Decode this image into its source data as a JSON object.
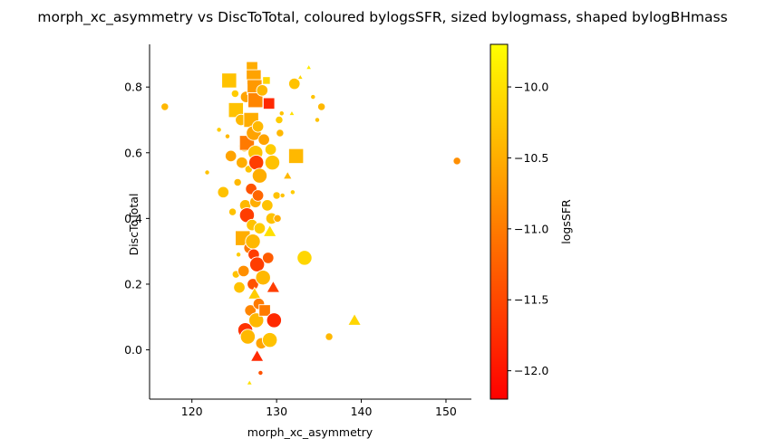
{
  "chart_data": {
    "type": "scatter",
    "title": "morph_xc_asymmetry vs DiscToTotal, coloured bylogsSFR, sized bylogmass, shaped bylogBHmass",
    "xlabel": "morph_xc_asymmetry",
    "ylabel": "DiscToTotal",
    "xlim": [
      115,
      153
    ],
    "ylim": [
      -0.15,
      0.93
    ],
    "xticks": [
      120,
      130,
      140,
      150
    ],
    "yticks": [
      0.0,
      0.2,
      0.4,
      0.6,
      0.8
    ],
    "grid": false,
    "colorbar": {
      "label": "logsSFR",
      "range": [
        -12.2,
        -9.7
      ],
      "ticks": [
        -10.0,
        -10.5,
        -11.0,
        -11.5,
        -12.0
      ],
      "colormap": [
        "#ff0000",
        "#ff8000",
        "#ffff00"
      ]
    },
    "points": [
      {
        "x": 116.8,
        "y": 0.74,
        "c": -10.4,
        "s": 1,
        "m": "o"
      },
      {
        "x": 121.8,
        "y": 0.54,
        "c": -10.3,
        "s": 0,
        "m": "o"
      },
      {
        "x": 123.2,
        "y": 0.67,
        "c": -10.2,
        "s": 0,
        "m": "o"
      },
      {
        "x": 123.7,
        "y": 0.48,
        "c": -10.3,
        "s": 2,
        "m": "o"
      },
      {
        "x": 124.2,
        "y": 0.65,
        "c": -10.4,
        "s": 0,
        "m": "o"
      },
      {
        "x": 124.4,
        "y": 0.82,
        "c": -10.3,
        "s": 3,
        "m": "s"
      },
      {
        "x": 124.6,
        "y": 0.59,
        "c": -10.6,
        "s": 2,
        "m": "o"
      },
      {
        "x": 124.8,
        "y": 0.42,
        "c": -10.3,
        "s": 1,
        "m": "o"
      },
      {
        "x": 125.1,
        "y": 0.78,
        "c": -10.2,
        "s": 1,
        "m": "o"
      },
      {
        "x": 125.2,
        "y": 0.73,
        "c": -10.3,
        "s": 3,
        "m": "s"
      },
      {
        "x": 125.2,
        "y": 0.23,
        "c": -10.3,
        "s": 1,
        "m": "o"
      },
      {
        "x": 125.4,
        "y": 0.51,
        "c": -10.4,
        "s": 1,
        "m": "o"
      },
      {
        "x": 125.5,
        "y": 0.29,
        "c": -10.2,
        "s": 0,
        "m": "o"
      },
      {
        "x": 125.6,
        "y": 0.19,
        "c": -10.3,
        "s": 2,
        "m": "o"
      },
      {
        "x": 125.8,
        "y": 0.7,
        "c": -10.4,
        "s": 2,
        "m": "o"
      },
      {
        "x": 125.9,
        "y": 0.57,
        "c": -10.5,
        "s": 2,
        "m": "o"
      },
      {
        "x": 126.0,
        "y": 0.34,
        "c": -10.5,
        "s": 3,
        "m": "s"
      },
      {
        "x": 126.1,
        "y": 0.24,
        "c": -10.8,
        "s": 2,
        "m": "o"
      },
      {
        "x": 126.2,
        "y": 0.62,
        "c": -10.4,
        "s": 2,
        "m": "o"
      },
      {
        "x": 126.3,
        "y": 0.44,
        "c": -10.4,
        "s": 2,
        "m": "o"
      },
      {
        "x": 126.3,
        "y": 0.06,
        "c": -11.7,
        "s": 3,
        "m": "o"
      },
      {
        "x": 126.4,
        "y": 0.77,
        "c": -10.6,
        "s": 2,
        "m": "o"
      },
      {
        "x": 126.5,
        "y": 0.63,
        "c": -11.0,
        "s": 3,
        "m": "s"
      },
      {
        "x": 126.5,
        "y": 0.41,
        "c": -11.6,
        "s": 3,
        "m": "o"
      },
      {
        "x": 126.6,
        "y": 0.04,
        "c": -10.4,
        "s": 3,
        "m": "o"
      },
      {
        "x": 126.7,
        "y": 0.55,
        "c": -10.3,
        "s": 1,
        "m": "o"
      },
      {
        "x": 126.8,
        "y": -0.1,
        "c": -10.0,
        "s": 0,
        "m": "^"
      },
      {
        "x": 126.8,
        "y": 0.31,
        "c": -11.0,
        "s": 2,
        "m": "o"
      },
      {
        "x": 126.9,
        "y": 0.12,
        "c": -10.9,
        "s": 2,
        "m": "o"
      },
      {
        "x": 127.0,
        "y": 0.7,
        "c": -10.5,
        "s": 3,
        "m": "s"
      },
      {
        "x": 127.0,
        "y": 0.49,
        "c": -11.4,
        "s": 2,
        "m": "o"
      },
      {
        "x": 127.1,
        "y": 0.86,
        "c": -10.5,
        "s": 2,
        "m": "s"
      },
      {
        "x": 127.1,
        "y": 0.38,
        "c": -10.3,
        "s": 2,
        "m": "o"
      },
      {
        "x": 127.2,
        "y": 0.33,
        "c": -10.4,
        "s": 3,
        "m": "o"
      },
      {
        "x": 127.2,
        "y": 0.2,
        "c": -11.4,
        "s": 2,
        "m": "o"
      },
      {
        "x": 127.3,
        "y": 0.83,
        "c": -10.6,
        "s": 3,
        "m": "s"
      },
      {
        "x": 127.3,
        "y": 0.66,
        "c": -10.6,
        "s": 3,
        "m": "o"
      },
      {
        "x": 127.3,
        "y": 0.29,
        "c": -11.6,
        "s": 2,
        "m": "o"
      },
      {
        "x": 127.4,
        "y": 0.8,
        "c": -10.7,
        "s": 3,
        "m": "s"
      },
      {
        "x": 127.4,
        "y": 0.17,
        "c": -10.2,
        "s": 2,
        "m": "^"
      },
      {
        "x": 127.5,
        "y": 0.76,
        "c": -10.9,
        "s": 3,
        "m": "s"
      },
      {
        "x": 127.5,
        "y": 0.6,
        "c": -10.3,
        "s": 3,
        "m": "o"
      },
      {
        "x": 127.5,
        "y": 0.45,
        "c": -10.5,
        "s": 2,
        "m": "o"
      },
      {
        "x": 127.6,
        "y": 0.57,
        "c": -11.6,
        "s": 3,
        "m": "o"
      },
      {
        "x": 127.6,
        "y": 0.09,
        "c": -10.4,
        "s": 3,
        "m": "o"
      },
      {
        "x": 127.7,
        "y": -0.02,
        "c": -11.8,
        "s": 2,
        "m": "^"
      },
      {
        "x": 127.7,
        "y": 0.26,
        "c": -11.6,
        "s": 3,
        "m": "o"
      },
      {
        "x": 127.8,
        "y": 0.47,
        "c": -11.2,
        "s": 2,
        "m": "o"
      },
      {
        "x": 127.8,
        "y": 0.68,
        "c": -10.4,
        "s": 2,
        "m": "o"
      },
      {
        "x": 127.9,
        "y": 0.14,
        "c": -11.0,
        "s": 2,
        "m": "o"
      },
      {
        "x": 128.0,
        "y": 0.37,
        "c": -10.2,
        "s": 2,
        "m": "o"
      },
      {
        "x": 128.0,
        "y": 0.53,
        "c": -10.5,
        "s": 3,
        "m": "o"
      },
      {
        "x": 128.1,
        "y": -0.07,
        "c": -11.4,
        "s": 0,
        "m": "o"
      },
      {
        "x": 128.2,
        "y": 0.02,
        "c": -10.6,
        "s": 2,
        "m": "o"
      },
      {
        "x": 128.3,
        "y": 0.79,
        "c": -10.4,
        "s": 2,
        "m": "o"
      },
      {
        "x": 128.4,
        "y": 0.22,
        "c": -10.4,
        "s": 3,
        "m": "o"
      },
      {
        "x": 128.5,
        "y": 0.64,
        "c": -10.6,
        "s": 2,
        "m": "o"
      },
      {
        "x": 128.6,
        "y": 0.12,
        "c": -11.0,
        "s": 2,
        "m": "s"
      },
      {
        "x": 128.8,
        "y": 0.82,
        "c": -10.1,
        "s": 1,
        "m": "s"
      },
      {
        "x": 128.9,
        "y": 0.44,
        "c": -10.3,
        "s": 2,
        "m": "o"
      },
      {
        "x": 129.0,
        "y": 0.28,
        "c": -11.3,
        "s": 2,
        "m": "o"
      },
      {
        "x": 129.1,
        "y": 0.75,
        "c": -11.8,
        "s": 2,
        "m": "s"
      },
      {
        "x": 129.2,
        "y": 0.36,
        "c": -10.0,
        "s": 2,
        "m": "^"
      },
      {
        "x": 129.2,
        "y": 0.03,
        "c": -10.3,
        "s": 3,
        "m": "o"
      },
      {
        "x": 129.3,
        "y": 0.61,
        "c": -10.2,
        "s": 2,
        "m": "o"
      },
      {
        "x": 129.4,
        "y": 0.4,
        "c": -10.3,
        "s": 2,
        "m": "o"
      },
      {
        "x": 129.5,
        "y": 0.57,
        "c": -10.3,
        "s": 3,
        "m": "o"
      },
      {
        "x": 129.6,
        "y": 0.19,
        "c": -11.6,
        "s": 2,
        "m": "^"
      },
      {
        "x": 129.7,
        "y": 0.09,
        "c": -11.8,
        "s": 3,
        "m": "o"
      },
      {
        "x": 130.0,
        "y": 0.47,
        "c": -10.3,
        "s": 1,
        "m": "o"
      },
      {
        "x": 130.1,
        "y": 0.4,
        "c": -10.5,
        "s": 1,
        "m": "o"
      },
      {
        "x": 130.3,
        "y": 0.7,
        "c": -10.2,
        "s": 1,
        "m": "o"
      },
      {
        "x": 130.4,
        "y": 0.66,
        "c": -10.4,
        "s": 1,
        "m": "o"
      },
      {
        "x": 130.6,
        "y": 0.72,
        "c": -10.3,
        "s": 0,
        "m": "o"
      },
      {
        "x": 130.7,
        "y": 0.47,
        "c": -10.3,
        "s": 0,
        "m": "o"
      },
      {
        "x": 131.3,
        "y": 0.53,
        "c": -10.4,
        "s": 1,
        "m": "^"
      },
      {
        "x": 131.8,
        "y": 0.72,
        "c": -10.0,
        "s": 0,
        "m": "^"
      },
      {
        "x": 131.9,
        "y": 0.48,
        "c": -10.2,
        "s": 0,
        "m": "o"
      },
      {
        "x": 132.1,
        "y": 0.81,
        "c": -10.3,
        "s": 2,
        "m": "o"
      },
      {
        "x": 132.3,
        "y": 0.59,
        "c": -10.4,
        "s": 3,
        "m": "s"
      },
      {
        "x": 132.8,
        "y": 0.83,
        "c": -10.1,
        "s": 0,
        "m": "^"
      },
      {
        "x": 133.3,
        "y": 0.28,
        "c": -10.1,
        "s": 3,
        "m": "o"
      },
      {
        "x": 133.8,
        "y": 0.86,
        "c": -9.9,
        "s": 0,
        "m": "^"
      },
      {
        "x": 134.3,
        "y": 0.77,
        "c": -10.3,
        "s": 0,
        "m": "o"
      },
      {
        "x": 134.8,
        "y": 0.7,
        "c": -10.3,
        "s": 0,
        "m": "o"
      },
      {
        "x": 135.3,
        "y": 0.74,
        "c": -10.4,
        "s": 1,
        "m": "o"
      },
      {
        "x": 136.2,
        "y": 0.04,
        "c": -10.4,
        "s": 1,
        "m": "o"
      },
      {
        "x": 139.2,
        "y": 0.09,
        "c": -10.1,
        "s": 2,
        "m": "^"
      },
      {
        "x": 151.3,
        "y": 0.575,
        "c": -10.8,
        "s": 1,
        "m": "o"
      }
    ]
  }
}
